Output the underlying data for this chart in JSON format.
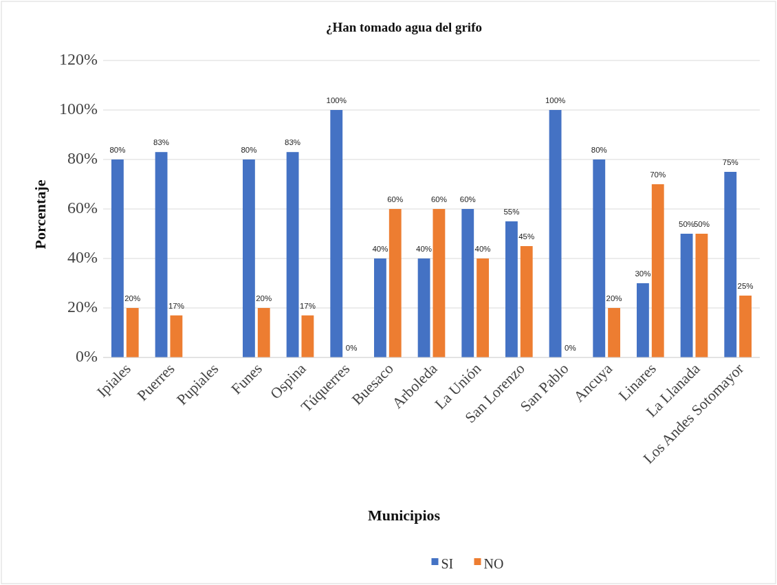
{
  "chart_data": {
    "type": "bar",
    "title": "¿Han tomado agua del grifo",
    "xlabel": "Municipios",
    "ylabel": "Porcentaje",
    "categories": [
      "Ipiales",
      "Puerres",
      "Pupiales",
      "Funes",
      "Ospina",
      "Túquerres",
      "Buesaco",
      "Arboleda",
      "La Unión",
      "San Lorenzo",
      "San Pablo",
      "Ancuya",
      "Linares",
      "La Llanada",
      "Los Andes Sotomayor"
    ],
    "series": [
      {
        "name": "SI",
        "color": "#4472c4",
        "values": [
          80,
          83,
          null,
          80,
          83,
          100,
          40,
          40,
          60,
          55,
          100,
          80,
          30,
          50,
          75
        ],
        "value_labels": [
          "80%",
          "83%",
          null,
          "80%",
          "83%",
          "100%",
          "40%",
          "40%",
          "60%",
          "55%",
          "100%",
          "80%",
          "30%",
          "50%",
          "75%"
        ]
      },
      {
        "name": "NO",
        "color": "#ed7d31",
        "values": [
          20,
          17,
          null,
          20,
          17,
          0,
          60,
          60,
          40,
          45,
          0,
          20,
          70,
          50,
          25
        ],
        "value_labels": [
          "20%",
          "17%",
          null,
          "20%",
          "17%",
          "0%",
          "60%",
          "60%",
          "40%",
          "45%",
          "0%",
          "20%",
          "70%",
          "50%",
          "25%"
        ]
      }
    ],
    "ylim": [
      0,
      120
    ],
    "yticks": [
      {
        "value": 0,
        "label": "0%"
      },
      {
        "value": 20,
        "label": "20%"
      },
      {
        "value": 40,
        "label": "40%"
      },
      {
        "value": 60,
        "label": "60%"
      },
      {
        "value": 80,
        "label": "80%"
      },
      {
        "value": 100,
        "label": "100%"
      },
      {
        "value": 120,
        "label": "120%"
      }
    ],
    "grid": "y",
    "legend": "bottom"
  }
}
